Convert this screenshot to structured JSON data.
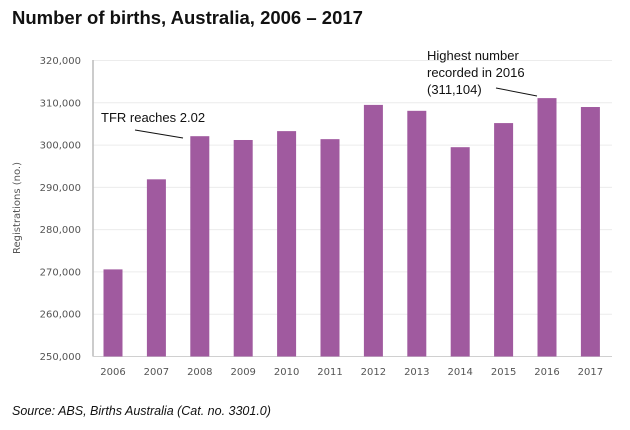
{
  "chart_data": {
    "type": "bar",
    "title": "Number of births, Australia, 2006 – 2017",
    "xlabel": "",
    "ylabel": "Registrations (no.)",
    "ylim": [
      250000,
      320000
    ],
    "yticks": [
      250000,
      260000,
      270000,
      280000,
      290000,
      300000,
      310000,
      320000
    ],
    "ytick_labels": [
      "250,000",
      "260,000",
      "270,000",
      "280,000",
      "290,000",
      "300,000",
      "310,000",
      "320,000"
    ],
    "grid": true,
    "categories": [
      "2006",
      "2007",
      "2008",
      "2009",
      "2010",
      "2011",
      "2012",
      "2013",
      "2014",
      "2015",
      "2016",
      "2017"
    ],
    "values": [
      270600,
      291900,
      302100,
      301200,
      303300,
      301400,
      309500,
      308100,
      299500,
      305200,
      311104,
      309000
    ],
    "bar_color": "#a05a9f",
    "annotations": [
      {
        "text": "TFR reaches 2.02",
        "category": "2008"
      },
      {
        "lines": [
          "Highest number",
          "recorded in 2016",
          "(311,104)"
        ],
        "category": "2016"
      }
    ],
    "source": "Source:  ABS, Births Australia (Cat. no. 3301.0)"
  }
}
